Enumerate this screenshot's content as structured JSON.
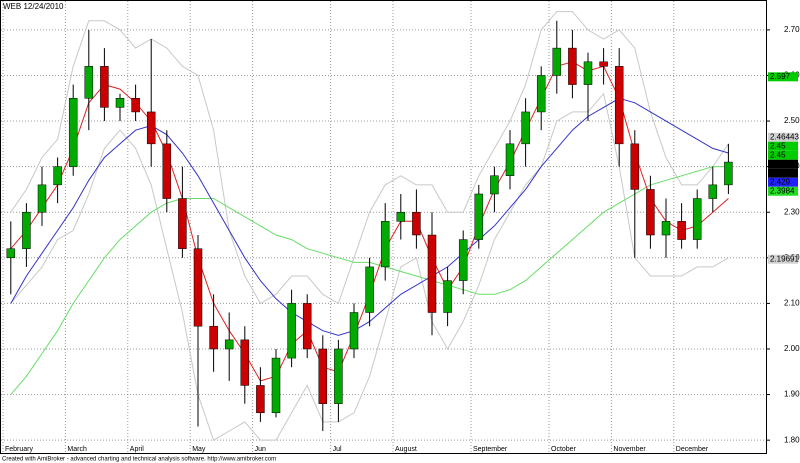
{
  "chart_data": {
    "type": "candlestick",
    "title": "WEB 12/24/2010",
    "footer": "Created with AmiBroker - advanced charting and technical analysis software. http://www.amibroker.com",
    "categories": [
      "February",
      null,
      null,
      null,
      "March",
      null,
      null,
      null,
      "April",
      null,
      null,
      null,
      "May",
      null,
      null,
      null,
      "Jun",
      null,
      null,
      null,
      null,
      "Jul",
      null,
      null,
      null,
      "August",
      null,
      null,
      null,
      null,
      "September",
      null,
      null,
      null,
      null,
      "October",
      null,
      null,
      null,
      "November",
      null,
      null,
      null,
      "December",
      null,
      null,
      null
    ],
    "open": [
      2.2,
      2.22,
      2.3,
      2.36,
      2.4,
      2.55,
      2.62,
      2.53,
      2.55,
      2.52,
      2.45,
      2.33,
      2.22,
      2.05,
      2.0,
      2.02,
      1.92,
      1.86,
      1.98,
      2.1,
      2.0,
      1.88,
      2.0,
      2.08,
      2.18,
      2.28,
      2.3,
      2.25,
      2.08,
      2.15,
      2.24,
      2.34,
      2.38,
      2.45,
      2.52,
      2.6,
      2.66,
      2.58,
      2.63,
      2.62,
      2.45,
      2.35,
      2.25,
      2.28,
      2.24,
      2.33,
      2.36
    ],
    "high": [
      2.28,
      2.32,
      2.4,
      2.42,
      2.58,
      2.7,
      2.66,
      2.56,
      2.58,
      2.68,
      2.48,
      2.4,
      2.25,
      2.12,
      2.08,
      2.05,
      1.96,
      2.0,
      2.13,
      2.12,
      2.03,
      2.02,
      2.1,
      2.2,
      2.32,
      2.34,
      2.35,
      2.3,
      2.18,
      2.26,
      2.36,
      2.4,
      2.48,
      2.55,
      2.62,
      2.72,
      2.7,
      2.65,
      2.66,
      2.66,
      2.48,
      2.38,
      2.33,
      2.32,
      2.35,
      2.4,
      2.45
    ],
    "low": [
      2.12,
      2.18,
      2.27,
      2.32,
      2.38,
      2.48,
      2.5,
      2.5,
      2.5,
      2.4,
      2.3,
      2.2,
      1.83,
      1.95,
      1.93,
      1.88,
      1.84,
      1.85,
      1.96,
      1.98,
      1.82,
      1.84,
      1.98,
      2.05,
      2.15,
      2.24,
      2.22,
      2.03,
      2.05,
      2.12,
      2.22,
      2.3,
      2.35,
      2.4,
      2.48,
      2.56,
      2.55,
      2.5,
      2.58,
      2.4,
      2.2,
      2.22,
      2.2,
      2.22,
      2.22,
      2.3,
      2.34
    ],
    "close": [
      2.22,
      2.3,
      2.36,
      2.4,
      2.55,
      2.62,
      2.53,
      2.55,
      2.52,
      2.45,
      2.33,
      2.22,
      2.05,
      2.0,
      2.02,
      1.92,
      1.86,
      1.98,
      2.1,
      2.0,
      1.88,
      2.0,
      2.08,
      2.18,
      2.28,
      2.3,
      2.25,
      2.08,
      2.15,
      2.24,
      2.34,
      2.38,
      2.45,
      2.52,
      2.6,
      2.66,
      2.58,
      2.63,
      2.62,
      2.45,
      2.35,
      2.25,
      2.28,
      2.24,
      2.33,
      2.36,
      2.41
    ],
    "up_color": "#00aa00",
    "down_color": "#cc0000",
    "series": [
      {
        "color": "#c8c8c8",
        "values": [
          2.3,
          2.35,
          2.42,
          2.46,
          2.62,
          2.72,
          2.72,
          2.7,
          2.66,
          2.68,
          2.66,
          2.62,
          2.6,
          2.48,
          2.26,
          2.16,
          2.1,
          2.12,
          2.16,
          2.16,
          2.12,
          2.1,
          2.2,
          2.3,
          2.36,
          2.38,
          2.36,
          2.36,
          2.3,
          2.3,
          2.38,
          2.44,
          2.5,
          2.58,
          2.7,
          2.74,
          2.74,
          2.7,
          2.68,
          2.7,
          2.66,
          2.52,
          2.42,
          2.36,
          2.36,
          2.4,
          2.45
        ]
      },
      {
        "color": "#c8c8c8",
        "values": [
          2.1,
          2.14,
          2.18,
          2.24,
          2.26,
          2.34,
          2.44,
          2.48,
          2.44,
          2.36,
          2.22,
          2.08,
          1.9,
          1.8,
          1.82,
          1.84,
          1.8,
          1.8,
          1.86,
          1.92,
          1.84,
          1.84,
          1.86,
          1.94,
          2.06,
          2.18,
          2.2,
          2.06,
          2.0,
          2.06,
          2.14,
          2.24,
          2.3,
          2.36,
          2.4,
          2.5,
          2.52,
          2.52,
          2.56,
          2.4,
          2.2,
          2.16,
          2.16,
          2.16,
          2.18,
          2.18,
          2.2
        ]
      },
      {
        "color": "#66dd66",
        "values": [
          1.9,
          1.94,
          1.99,
          2.04,
          2.1,
          2.15,
          2.2,
          2.24,
          2.27,
          2.3,
          2.32,
          2.33,
          2.33,
          2.33,
          2.31,
          2.29,
          2.27,
          2.25,
          2.24,
          2.22,
          2.21,
          2.2,
          2.19,
          2.19,
          2.18,
          2.17,
          2.16,
          2.15,
          2.14,
          2.13,
          2.12,
          2.12,
          2.13,
          2.15,
          2.18,
          2.21,
          2.24,
          2.27,
          2.3,
          2.32,
          2.34,
          2.36,
          2.37,
          2.38,
          2.39,
          2.4,
          2.4
        ]
      },
      {
        "color": "#3333cc",
        "values": [
          2.1,
          2.16,
          2.21,
          2.26,
          2.31,
          2.37,
          2.42,
          2.45,
          2.48,
          2.49,
          2.47,
          2.43,
          2.38,
          2.32,
          2.26,
          2.2,
          2.15,
          2.11,
          2.08,
          2.06,
          2.04,
          2.03,
          2.04,
          2.06,
          2.09,
          2.12,
          2.14,
          2.16,
          2.18,
          2.21,
          2.24,
          2.27,
          2.31,
          2.35,
          2.4,
          2.44,
          2.48,
          2.51,
          2.53,
          2.55,
          2.54,
          2.52,
          2.5,
          2.48,
          2.46,
          2.44,
          2.43
        ]
      },
      {
        "color": "#dd2222",
        "values": [
          2.22,
          2.26,
          2.31,
          2.36,
          2.44,
          2.54,
          2.58,
          2.57,
          2.54,
          2.5,
          2.43,
          2.33,
          2.2,
          2.1,
          2.04,
          1.99,
          1.93,
          1.94,
          2.01,
          2.04,
          1.96,
          1.95,
          2.03,
          2.12,
          2.22,
          2.28,
          2.28,
          2.2,
          2.13,
          2.18,
          2.27,
          2.35,
          2.41,
          2.48,
          2.55,
          2.62,
          2.63,
          2.61,
          2.62,
          2.55,
          2.43,
          2.33,
          2.28,
          2.26,
          2.27,
          2.3,
          2.33
        ]
      }
    ],
    "price_labels": [
      {
        "value": 2.597,
        "color": "#00cc00"
      },
      {
        "value": 2.46443,
        "color": "#d0d0d0"
      },
      {
        "value": 2.45,
        "color": "#00cc00"
      },
      {
        "value": 2.45,
        "color": "#00cc00"
      },
      {
        "value": 2.45,
        "color": "#000000"
      },
      {
        "value": 2.45,
        "color": "#000000"
      },
      {
        "value": 2.429,
        "color": "#2222ff"
      },
      {
        "value": 2.3984,
        "color": "#22dd22"
      },
      {
        "value": 2.19691,
        "color": "#d0d0d0"
      }
    ],
    "ylim": [
      1.774,
      2.748
    ],
    "yticks": [
      {
        "value": 1.8,
        "label": "1.800"
      },
      {
        "value": 1.9,
        "label": "1.900"
      },
      {
        "value": 2.0,
        "label": "2.000"
      },
      {
        "value": 2.1,
        "label": "2.100"
      },
      {
        "value": 2.2,
        "label": "2.200"
      },
      {
        "value": 2.3,
        "label": "2.300"
      },
      {
        "value": 2.4,
        "label": "2.400"
      },
      {
        "value": 2.5,
        "label": "2.500"
      },
      {
        "value": 2.6,
        "label": "2.600"
      },
      {
        "value": 2.7,
        "label": "2.700"
      }
    ],
    "grid": true
  }
}
